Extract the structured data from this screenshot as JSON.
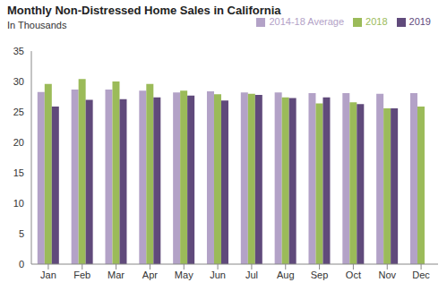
{
  "chart_data": {
    "type": "bar",
    "title": "Monthly Non-Distressed Home Sales in California",
    "subtitle": "In Thousands",
    "categories": [
      "Jan",
      "Feb",
      "Mar",
      "Apr",
      "May",
      "Jun",
      "Jul",
      "Aug",
      "Sep",
      "Oct",
      "Nov",
      "Dec"
    ],
    "series": [
      {
        "name": "2014-18 Average",
        "color": "#b3a2c7",
        "values": [
          28.3,
          28.7,
          28.7,
          28.5,
          28.2,
          28.4,
          28.2,
          28.2,
          28.1,
          28.1,
          28.0,
          28.1
        ]
      },
      {
        "name": "2018",
        "color": "#9bbb59",
        "values": [
          29.6,
          30.4,
          30.0,
          29.6,
          28.5,
          27.9,
          28.0,
          27.4,
          26.4,
          26.6,
          25.6,
          25.9
        ]
      },
      {
        "name": "2019",
        "color": "#604a7b",
        "values": [
          25.9,
          27.0,
          27.1,
          27.4,
          27.7,
          26.9,
          27.8,
          27.3,
          27.4,
          26.3,
          25.6,
          null
        ]
      }
    ],
    "ylim": [
      0,
      35
    ],
    "yticks": [
      0,
      5,
      10,
      15,
      20,
      25,
      30,
      35
    ],
    "grid": false,
    "legend": "top-right"
  }
}
